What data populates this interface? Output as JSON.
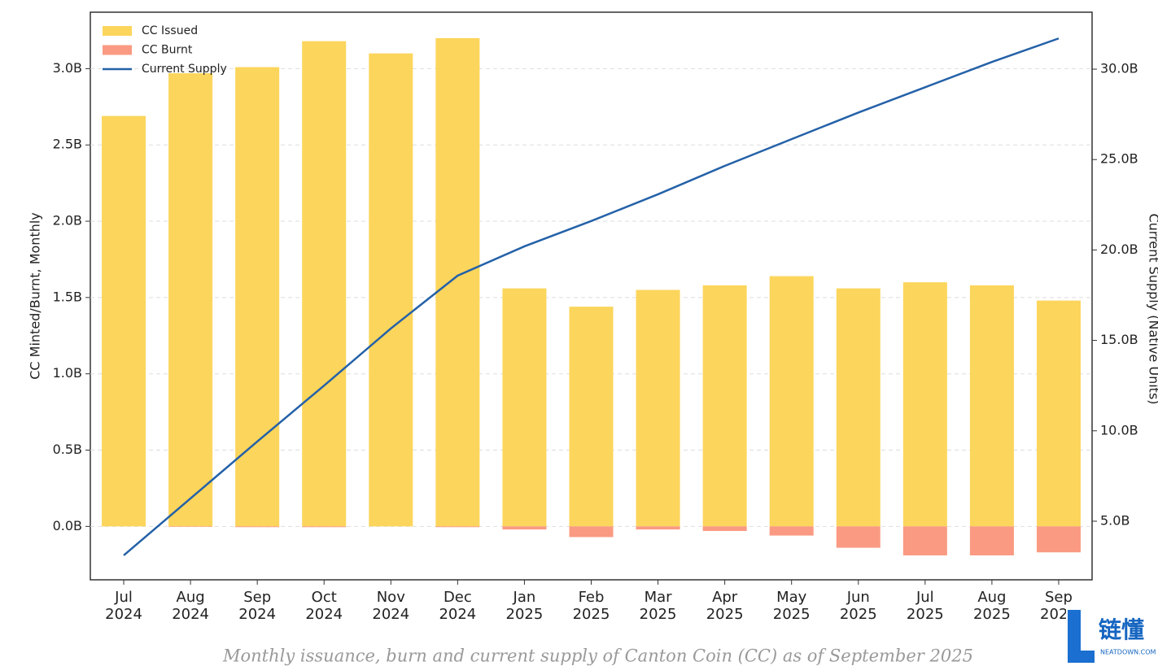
{
  "chart_data": {
    "type": "bar",
    "y_label": "CC Minted/Burnt, Monthly",
    "y2_label": "Current Supply (Native Units)",
    "categories": [
      [
        "Jul",
        "2024"
      ],
      [
        "Aug",
        "2024"
      ],
      [
        "Sep",
        "2024"
      ],
      [
        "Oct",
        "2024"
      ],
      [
        "Nov",
        "2024"
      ],
      [
        "Dec",
        "2024"
      ],
      [
        "Jan",
        "2025"
      ],
      [
        "Feb",
        "2025"
      ],
      [
        "Mar",
        "2025"
      ],
      [
        "Apr",
        "2025"
      ],
      [
        "May",
        "2025"
      ],
      [
        "Jun",
        "2025"
      ],
      [
        "Jul",
        "2025"
      ],
      [
        "Aug",
        "2025"
      ],
      [
        "Sep",
        "2025"
      ]
    ],
    "series": [
      {
        "name": "CC Issued",
        "type": "bar",
        "color": "#fcd55c",
        "values": [
          2.69,
          2.97,
          3.01,
          3.18,
          3.1,
          3.2,
          1.56,
          1.44,
          1.55,
          1.58,
          1.64,
          1.56,
          1.6,
          1.58,
          1.48
        ]
      },
      {
        "name": "CC Burnt",
        "type": "bar",
        "color": "#fa9a82",
        "values": [
          0,
          -0.003,
          -0.005,
          -0.005,
          0,
          -0.005,
          -0.02,
          -0.07,
          -0.02,
          -0.03,
          -0.06,
          -0.14,
          -0.19,
          -0.19,
          -0.17
        ]
      },
      {
        "name": "Current Supply",
        "type": "line",
        "axis": "y2",
        "color": "#2461a8",
        "values": [
          3.11,
          6.26,
          9.41,
          12.5,
          15.66,
          18.58,
          20.2,
          21.6,
          23.08,
          24.65,
          26.13,
          27.6,
          29.0,
          30.4,
          31.7
        ]
      }
    ],
    "ylim": [
      -0.35,
      3.37
    ],
    "yticks": [
      {
        "value": 0,
        "label": "0.0B"
      },
      {
        "value": 0.5,
        "label": "0.5B"
      },
      {
        "value": 1,
        "label": "1.0B"
      },
      {
        "value": 1.5,
        "label": "1.5B"
      },
      {
        "value": 2,
        "label": "2.0B"
      },
      {
        "value": 2.5,
        "label": "2.5B"
      },
      {
        "value": 3,
        "label": "3.0B"
      }
    ],
    "y2lim": [
      1.76,
      33.15
    ],
    "y2ticks": [
      {
        "value": 5,
        "label": "5.0B"
      },
      {
        "value": 10,
        "label": "10.0B"
      },
      {
        "value": 15,
        "label": "15.0B"
      },
      {
        "value": 20,
        "label": "20.0B"
      },
      {
        "value": 25,
        "label": "25.0B"
      },
      {
        "value": 30,
        "label": "30.0B"
      }
    ],
    "grid": true,
    "legend": "upper left"
  },
  "caption": "Monthly issuance, burn and current supply of Canton Coin (CC) as of September 2025",
  "watermark": {
    "brand": "链懂",
    "site": "NEATDOWN.COM"
  }
}
